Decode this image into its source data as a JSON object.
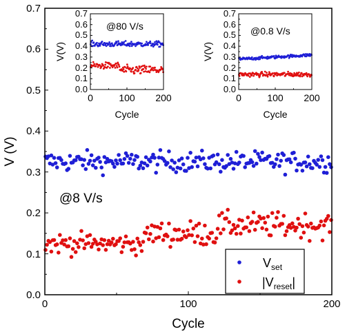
{
  "colors": {
    "set": "#1f1fd6",
    "reset": "#e01010",
    "axis": "#000000"
  },
  "chart_data": [
    {
      "id": "main",
      "type": "scatter",
      "xlabel": "Cycle",
      "ylabel": "V (V)",
      "xlim": [
        0,
        200
      ],
      "ylim": [
        0.0,
        0.7
      ],
      "xticks": [
        "0",
        "100",
        "200"
      ],
      "yticks": [
        "0.0",
        "0.1",
        "0.2",
        "0.3",
        "0.4",
        "0.5",
        "0.6",
        "0.7"
      ],
      "annotation": "@8 V/s",
      "legend": {
        "placement": "bottom-right",
        "items": [
          {
            "main": "V",
            "sub": "set"
          },
          {
            "main": "|V",
            "sub": "reset",
            "post": "|"
          }
        ]
      },
      "series": [
        {
          "id": "set",
          "mean": 0.325,
          "spread": 0.018,
          "x_start": 0,
          "x_end": 200,
          "count": 200
        },
        {
          "id": "reset",
          "segments": [
            {
              "x_start": 0,
              "x_end": 70,
              "mean": 0.125,
              "spread": 0.018
            },
            {
              "x_start": 70,
              "x_end": 120,
              "mean": 0.15,
              "spread": 0.022
            },
            {
              "x_start": 120,
              "x_end": 200,
              "mean": 0.17,
              "spread": 0.022
            }
          ],
          "count": 200
        }
      ]
    },
    {
      "id": "inset-80",
      "type": "scatter",
      "xlabel": "Cycle",
      "ylabel": "V(V)",
      "xlim": [
        0,
        200
      ],
      "ylim": [
        0.0,
        0.7
      ],
      "xticks": [
        "0",
        "100",
        "200"
      ],
      "yticks": [
        "0.0",
        "0.1",
        "0.2",
        "0.3",
        "0.4",
        "0.5",
        "0.6",
        "0.7"
      ],
      "annotation": "@80 V/s",
      "series": [
        {
          "id": "set",
          "mean": 0.42,
          "spread": 0.018,
          "x_start": 0,
          "x_end": 200,
          "count": 140
        },
        {
          "id": "reset",
          "segments": [
            {
              "x_start": 0,
              "x_end": 80,
              "mean": 0.22,
              "spread": 0.022
            },
            {
              "x_start": 80,
              "x_end": 200,
              "mean": 0.18,
              "spread": 0.03
            }
          ],
          "count": 140
        }
      ]
    },
    {
      "id": "inset-08",
      "type": "scatter",
      "xlabel": "Cycle",
      "ylabel": "V(V)",
      "xlim": [
        0,
        200
      ],
      "ylim": [
        0.0,
        0.7
      ],
      "xticks": [
        "0",
        "100",
        "200"
      ],
      "yticks": [
        "0.0",
        "0.1",
        "0.2",
        "0.3",
        "0.4",
        "0.5",
        "0.6",
        "0.7"
      ],
      "annotation": "@0.8 V/s",
      "series": [
        {
          "id": "set",
          "mean": 0.28,
          "mean_end": 0.32,
          "spread": 0.01,
          "x_start": 0,
          "x_end": 200,
          "count": 140
        },
        {
          "id": "reset",
          "mean": 0.14,
          "spread": 0.016,
          "x_start": 0,
          "x_end": 200,
          "count": 140
        }
      ]
    }
  ]
}
